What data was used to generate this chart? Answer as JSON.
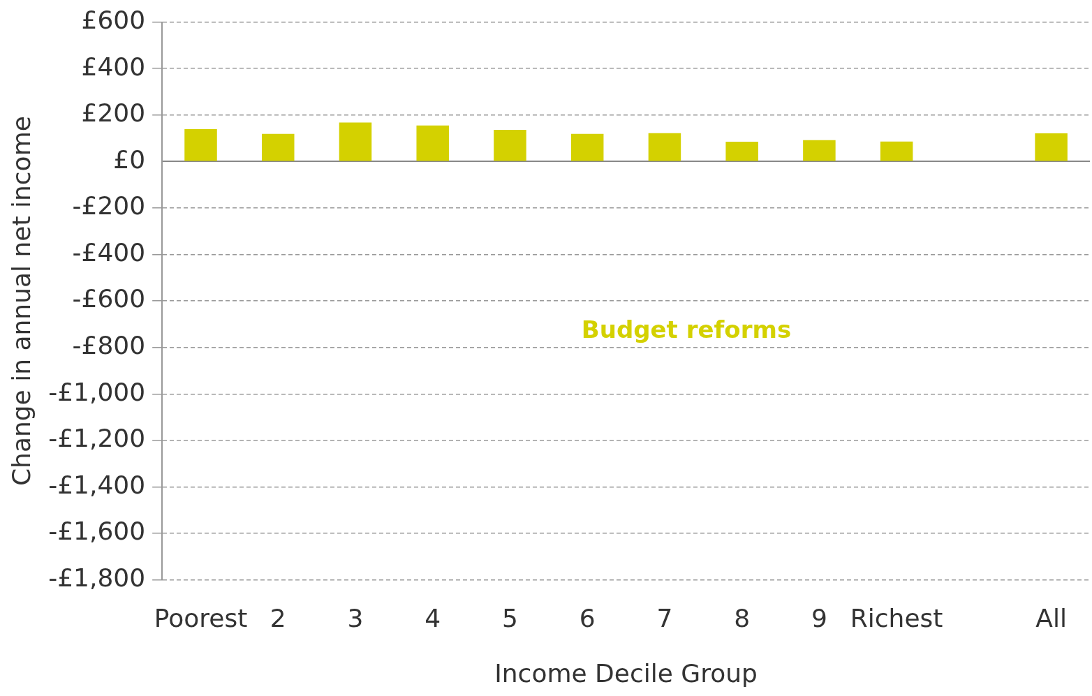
{
  "chart_data": {
    "type": "bar",
    "xlabel": "Income Decile Group",
    "ylabel": "Change in annual net income",
    "categories": [
      "Poorest",
      "2",
      "3",
      "4",
      "5",
      "6",
      "7",
      "8",
      "9",
      "Richest",
      null,
      "All"
    ],
    "series": [
      {
        "name": "Budget reforms",
        "color": "#d4d100",
        "values": [
          139,
          119,
          168,
          155,
          136,
          119,
          122,
          85,
          92,
          86,
          null,
          121
        ]
      }
    ],
    "ylim": [
      -1800,
      600
    ],
    "yticks": [
      {
        "value": 600,
        "label": "£600"
      },
      {
        "value": 400,
        "label": "£400"
      },
      {
        "value": 200,
        "label": "£200"
      },
      {
        "value": 0,
        "label": "£0"
      },
      {
        "value": -200,
        "label": "-£200"
      },
      {
        "value": -400,
        "label": "-£400"
      },
      {
        "value": -600,
        "label": "-£600"
      },
      {
        "value": -800,
        "label": "-£800"
      },
      {
        "value": -1000,
        "label": "-£1,000"
      },
      {
        "value": -1200,
        "label": "-£1,200"
      },
      {
        "value": -1400,
        "label": "-£1,400"
      },
      {
        "value": -1600,
        "label": "-£1,600"
      },
      {
        "value": -1800,
        "label": "-£1,800"
      }
    ],
    "grid": "y",
    "legend": false
  }
}
